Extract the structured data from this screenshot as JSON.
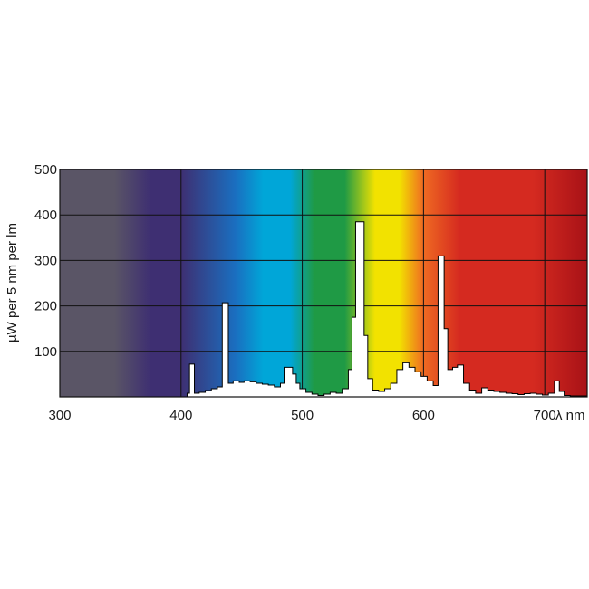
{
  "chart_data": {
    "type": "area",
    "title": "",
    "xlabel": "λ nm",
    "ylabel": "µW per 5 nm per lm",
    "xlim": [
      300,
      735
    ],
    "ylim": [
      0,
      500
    ],
    "grid": true,
    "background": "visible-spectrum-gradient",
    "x_ticks": [
      300,
      400,
      500,
      600,
      700
    ],
    "y_ticks": [
      100,
      200,
      300,
      400,
      500
    ],
    "series": [
      {
        "fill": "#ffffff",
        "stroke": "#000000",
        "points": [
          [
            405,
            0
          ],
          [
            405,
            8
          ],
          [
            407,
            8
          ],
          [
            407,
            72
          ],
          [
            411,
            72
          ],
          [
            411,
            8
          ],
          [
            415,
            8
          ],
          [
            415,
            10
          ],
          [
            420,
            10
          ],
          [
            420,
            14
          ],
          [
            425,
            14
          ],
          [
            425,
            18
          ],
          [
            430,
            18
          ],
          [
            430,
            22
          ],
          [
            434,
            22
          ],
          [
            434,
            207
          ],
          [
            439,
            207
          ],
          [
            439,
            30
          ],
          [
            443,
            30
          ],
          [
            443,
            35
          ],
          [
            448,
            35
          ],
          [
            448,
            32
          ],
          [
            452,
            32
          ],
          [
            452,
            35
          ],
          [
            457,
            35
          ],
          [
            457,
            33
          ],
          [
            462,
            33
          ],
          [
            462,
            30
          ],
          [
            467,
            30
          ],
          [
            467,
            28
          ],
          [
            472,
            28
          ],
          [
            472,
            26
          ],
          [
            477,
            26
          ],
          [
            477,
            22
          ],
          [
            482,
            22
          ],
          [
            482,
            30
          ],
          [
            485,
            30
          ],
          [
            485,
            65
          ],
          [
            492,
            65
          ],
          [
            492,
            50
          ],
          [
            495,
            50
          ],
          [
            495,
            30
          ],
          [
            498,
            30
          ],
          [
            498,
            18
          ],
          [
            503,
            18
          ],
          [
            503,
            10
          ],
          [
            508,
            10
          ],
          [
            508,
            6
          ],
          [
            513,
            6
          ],
          [
            513,
            3
          ],
          [
            518,
            3
          ],
          [
            518,
            6
          ],
          [
            523,
            6
          ],
          [
            523,
            10
          ],
          [
            528,
            10
          ],
          [
            528,
            8
          ],
          [
            533,
            8
          ],
          [
            533,
            18
          ],
          [
            538,
            18
          ],
          [
            538,
            60
          ],
          [
            541,
            60
          ],
          [
            541,
            175
          ],
          [
            544,
            175
          ],
          [
            544,
            385
          ],
          [
            551,
            385
          ],
          [
            551,
            135
          ],
          [
            554,
            135
          ],
          [
            554,
            40
          ],
          [
            558,
            40
          ],
          [
            558,
            15
          ],
          [
            563,
            15
          ],
          [
            563,
            12
          ],
          [
            568,
            12
          ],
          [
            568,
            18
          ],
          [
            573,
            18
          ],
          [
            573,
            30
          ],
          [
            578,
            30
          ],
          [
            578,
            60
          ],
          [
            583,
            60
          ],
          [
            583,
            75
          ],
          [
            588,
            75
          ],
          [
            588,
            65
          ],
          [
            593,
            65
          ],
          [
            593,
            55
          ],
          [
            598,
            55
          ],
          [
            598,
            45
          ],
          [
            603,
            45
          ],
          [
            603,
            35
          ],
          [
            608,
            35
          ],
          [
            608,
            25
          ],
          [
            612,
            25
          ],
          [
            612,
            310
          ],
          [
            617,
            310
          ],
          [
            617,
            150
          ],
          [
            620,
            150
          ],
          [
            620,
            60
          ],
          [
            624,
            60
          ],
          [
            624,
            65
          ],
          [
            628,
            65
          ],
          [
            628,
            70
          ],
          [
            633,
            70
          ],
          [
            633,
            30
          ],
          [
            638,
            30
          ],
          [
            638,
            15
          ],
          [
            643,
            15
          ],
          [
            643,
            8
          ],
          [
            648,
            8
          ],
          [
            648,
            20
          ],
          [
            653,
            20
          ],
          [
            653,
            15
          ],
          [
            658,
            15
          ],
          [
            658,
            12
          ],
          [
            663,
            12
          ],
          [
            663,
            10
          ],
          [
            668,
            10
          ],
          [
            668,
            8
          ],
          [
            673,
            8
          ],
          [
            673,
            7
          ],
          [
            678,
            7
          ],
          [
            678,
            5
          ],
          [
            683,
            5
          ],
          [
            683,
            7
          ],
          [
            688,
            7
          ],
          [
            688,
            8
          ],
          [
            693,
            8
          ],
          [
            693,
            6
          ],
          [
            698,
            6
          ],
          [
            698,
            4
          ],
          [
            703,
            4
          ],
          [
            703,
            8
          ],
          [
            708,
            8
          ],
          [
            708,
            35
          ],
          [
            712,
            35
          ],
          [
            712,
            12
          ],
          [
            716,
            12
          ],
          [
            716,
            3
          ],
          [
            721,
            3
          ],
          [
            721,
            2
          ],
          [
            735,
            2
          ],
          [
            735,
            0
          ]
        ]
      }
    ]
  },
  "colors": {
    "uv": "#5a5566",
    "violet": "#3e2f72",
    "blue": "#1a6fc0",
    "cyan": "#00a6d8",
    "green": "#1f9a45",
    "yellow": "#f2e200",
    "orange": "#ef6a22",
    "red": "#d52a20",
    "deep_red": "#a81217",
    "grid": "#111111",
    "curve_fill": "#ffffff"
  }
}
